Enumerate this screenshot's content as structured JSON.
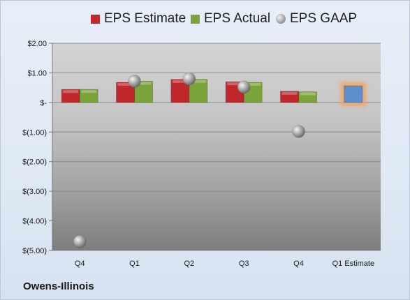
{
  "chart_data": {
    "type": "bar",
    "title": "",
    "xlabel": "",
    "ylabel": "",
    "categories": [
      "Q4",
      "Q1",
      "Q2",
      "Q3",
      "Q4",
      "Q1 Estimate"
    ],
    "ylim": [
      -5.0,
      2.0
    ],
    "yticks": [
      2.0,
      1.0,
      0.0,
      -1.0,
      -2.0,
      -3.0,
      -4.0,
      -5.0
    ],
    "ytick_labels": [
      "$2.00",
      "$1.00",
      "$-",
      "$(1.00)",
      "$(2.00)",
      "$(3.00)",
      "$(4.00)",
      "$(5.00)"
    ],
    "grid": true,
    "legend_position": "top",
    "series": [
      {
        "name": "EPS Estimate",
        "kind": "bar",
        "color": "#c0282d",
        "values": [
          0.44,
          0.68,
          0.78,
          0.7,
          0.38,
          null
        ]
      },
      {
        "name": "EPS Actual",
        "kind": "bar",
        "color": "#7aa33a",
        "values": [
          0.44,
          0.72,
          0.78,
          0.68,
          0.36,
          null
        ]
      },
      {
        "name": "EPS GAAP",
        "kind": "marker",
        "color": "#9a9a9a",
        "values": [
          -4.7,
          0.72,
          0.8,
          0.52,
          -0.98,
          null
        ]
      },
      {
        "name": "",
        "kind": "bar",
        "color": "#5b8fd0",
        "highlight": true,
        "values": [
          null,
          null,
          null,
          null,
          null,
          0.56
        ]
      }
    ]
  },
  "company": "Owens-Illinois",
  "legend": {
    "estimate_label": "EPS Estimate",
    "actual_label": "EPS Actual",
    "gaap_label": "EPS GAAP"
  }
}
